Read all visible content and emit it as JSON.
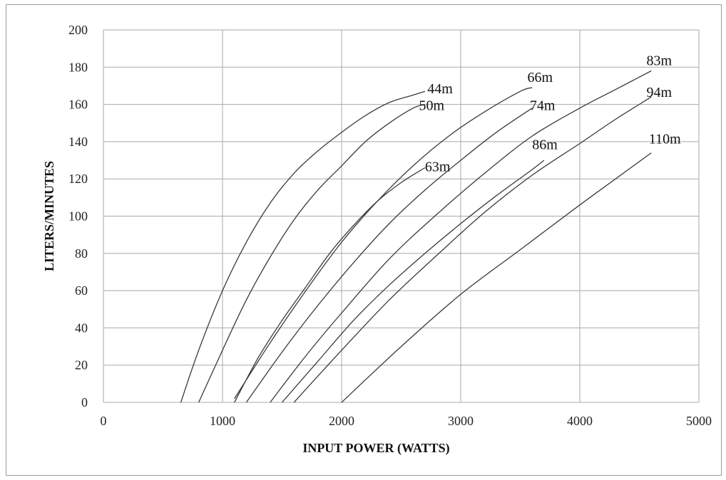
{
  "chart_data": {
    "type": "line",
    "title": "",
    "xlabel": "INPUT POWER (WATTS)",
    "ylabel": "LITERS/MINUTES",
    "xlim": [
      0,
      5000
    ],
    "ylim": [
      0,
      200
    ],
    "x_ticks": [
      "0",
      "1000",
      "2000",
      "3000",
      "4000",
      "5000"
    ],
    "y_ticks": [
      "0",
      "20",
      "40",
      "60",
      "80",
      "100",
      "120",
      "140",
      "160",
      "180",
      "200"
    ],
    "grid": true,
    "series": [
      {
        "name": "44m",
        "points": [
          [
            650,
            0
          ],
          [
            800,
            28
          ],
          [
            1000,
            60
          ],
          [
            1200,
            86
          ],
          [
            1400,
            107
          ],
          [
            1600,
            123
          ],
          [
            1800,
            135
          ],
          [
            2000,
            145
          ],
          [
            2200,
            154
          ],
          [
            2400,
            161
          ],
          [
            2600,
            165
          ],
          [
            2700,
            167
          ]
        ]
      },
      {
        "name": "50m",
        "points": [
          [
            800,
            0
          ],
          [
            1000,
            28
          ],
          [
            1200,
            55
          ],
          [
            1400,
            78
          ],
          [
            1600,
            98
          ],
          [
            1800,
            114
          ],
          [
            2000,
            127
          ],
          [
            2200,
            140
          ],
          [
            2400,
            150
          ],
          [
            2600,
            158
          ],
          [
            2700,
            160
          ]
        ]
      },
      {
        "name": "63m",
        "points": [
          [
            1100,
            0
          ],
          [
            1300,
            24
          ],
          [
            1500,
            44
          ],
          [
            1700,
            62
          ],
          [
            1900,
            80
          ],
          [
            2100,
            95
          ],
          [
            2300,
            108
          ],
          [
            2500,
            118
          ],
          [
            2700,
            126
          ]
        ]
      },
      {
        "name": "66m",
        "points": [
          [
            1100,
            2
          ],
          [
            1400,
            32
          ],
          [
            1700,
            60
          ],
          [
            2000,
            86
          ],
          [
            2300,
            108
          ],
          [
            2600,
            127
          ],
          [
            2900,
            143
          ],
          [
            3200,
            156
          ],
          [
            3500,
            167
          ],
          [
            3600,
            169
          ]
        ]
      },
      {
        "name": "74m",
        "points": [
          [
            1200,
            0
          ],
          [
            1500,
            27
          ],
          [
            1800,
            52
          ],
          [
            2100,
            75
          ],
          [
            2400,
            96
          ],
          [
            2700,
            114
          ],
          [
            3000,
            130
          ],
          [
            3300,
            145
          ],
          [
            3600,
            158
          ]
        ]
      },
      {
        "name": "83m",
        "points": [
          [
            1400,
            0
          ],
          [
            1700,
            25
          ],
          [
            2000,
            48
          ],
          [
            2400,
            77
          ],
          [
            2800,
            101
          ],
          [
            3200,
            123
          ],
          [
            3600,
            143
          ],
          [
            4000,
            158
          ],
          [
            4300,
            168
          ],
          [
            4600,
            178
          ]
        ]
      },
      {
        "name": "86m",
        "points": [
          [
            1500,
            0
          ],
          [
            1800,
            22
          ],
          [
            2100,
            44
          ],
          [
            2400,
            63
          ],
          [
            2700,
            80
          ],
          [
            3000,
            96
          ],
          [
            3300,
            111
          ],
          [
            3600,
            125
          ],
          [
            3700,
            130
          ]
        ]
      },
      {
        "name": "94m",
        "points": [
          [
            1600,
            0
          ],
          [
            2000,
            28
          ],
          [
            2400,
            55
          ],
          [
            2800,
            79
          ],
          [
            3200,
            102
          ],
          [
            3600,
            122
          ],
          [
            4000,
            139
          ],
          [
            4300,
            152
          ],
          [
            4600,
            164
          ]
        ]
      },
      {
        "name": "110m",
        "points": [
          [
            2000,
            0
          ],
          [
            2500,
            30
          ],
          [
            3000,
            58
          ],
          [
            3500,
            82
          ],
          [
            4000,
            106
          ],
          [
            4300,
            120
          ],
          [
            4600,
            134
          ]
        ]
      }
    ],
    "series_labels": [
      {
        "name": "44m",
        "x": 2720,
        "y": 166
      },
      {
        "name": "50m",
        "x": 2650,
        "y": 157
      },
      {
        "name": "63m",
        "x": 2700,
        "y": 124
      },
      {
        "name": "66m",
        "x": 3560,
        "y": 172
      },
      {
        "name": "74m",
        "x": 3580,
        "y": 157
      },
      {
        "name": "83m",
        "x": 4560,
        "y": 181
      },
      {
        "name": "86m",
        "x": 3600,
        "y": 136
      },
      {
        "name": "94m",
        "x": 4560,
        "y": 164
      },
      {
        "name": "110m",
        "x": 4580,
        "y": 139
      }
    ]
  }
}
